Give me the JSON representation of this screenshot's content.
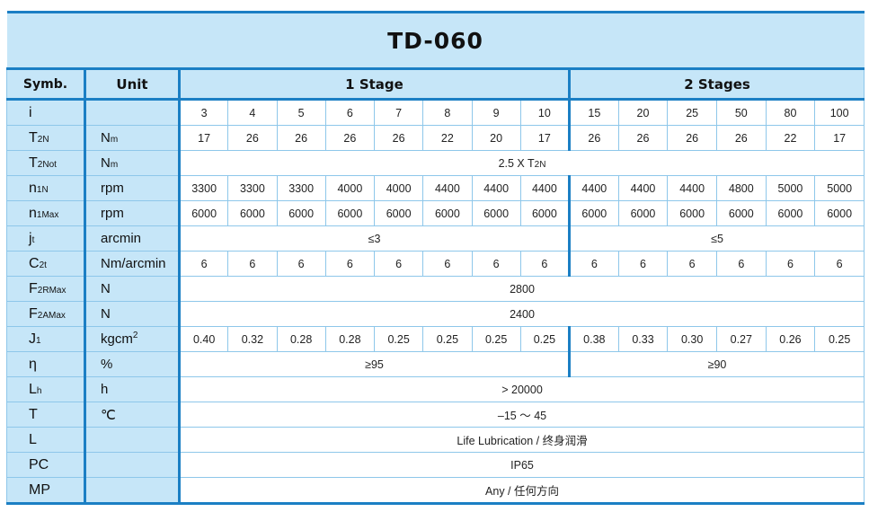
{
  "title": "TD-060",
  "header": {
    "symb": "Symb.",
    "unit": "Unit",
    "stage1": "1 Stage",
    "stage2": "2 Stages"
  },
  "colors": {
    "header_bg": "#c6e6f8",
    "border": "#1b7fc4",
    "grid": "#8ec7ea"
  },
  "rows": [
    {
      "sym": "i",
      "sym_sub": "",
      "unit": "",
      "unit_sub": "",
      "unit_sup": "",
      "values": [
        "3",
        "4",
        "5",
        "6",
        "7",
        "8",
        "9",
        "10",
        "15",
        "20",
        "25",
        "50",
        "80",
        "100"
      ]
    },
    {
      "sym": "T",
      "sym_sub": "2N",
      "unit": "N",
      "unit_sub": "m",
      "unit_sup": "",
      "values": [
        "17",
        "26",
        "26",
        "26",
        "26",
        "22",
        "20",
        "17",
        "26",
        "26",
        "26",
        "26",
        "22",
        "17"
      ]
    },
    {
      "sym": "T",
      "sym_sub": "2Not",
      "unit": "N",
      "unit_sub": "m",
      "unit_sup": "",
      "all": "2.5 X T",
      "all_sub": "2N"
    },
    {
      "sym": "n",
      "sym_sub": "1N",
      "unit": "rpm",
      "unit_sub": "",
      "unit_sup": "",
      "values": [
        "3300",
        "3300",
        "3300",
        "4000",
        "4000",
        "4400",
        "4400",
        "4400",
        "4400",
        "4400",
        "4400",
        "4800",
        "5000",
        "5000"
      ]
    },
    {
      "sym": "n",
      "sym_sub": "1Max",
      "unit": "rpm",
      "unit_sub": "",
      "unit_sup": "",
      "values": [
        "6000",
        "6000",
        "6000",
        "6000",
        "6000",
        "6000",
        "6000",
        "6000",
        "6000",
        "6000",
        "6000",
        "6000",
        "6000",
        "6000"
      ]
    },
    {
      "sym": "j",
      "sym_sub": "t",
      "unit": "arcmin",
      "unit_sub": "",
      "unit_sup": "",
      "s1": "≤3",
      "s2": "≤5"
    },
    {
      "sym": "C",
      "sym_sub": "2t",
      "unit": "Nm/arcmin",
      "unit_sub": "",
      "unit_sup": "",
      "values": [
        "6",
        "6",
        "6",
        "6",
        "6",
        "6",
        "6",
        "6",
        "6",
        "6",
        "6",
        "6",
        "6",
        "6"
      ]
    },
    {
      "sym": "F",
      "sym_sub": "2RMax",
      "unit": "N",
      "unit_sub": "",
      "unit_sup": "",
      "all": "2800"
    },
    {
      "sym": "F",
      "sym_sub": "2AMax",
      "unit": "N",
      "unit_sub": "",
      "unit_sup": "",
      "all": "2400"
    },
    {
      "sym": "J",
      "sym_sub": "1",
      "unit": "kgcm",
      "unit_sub": "",
      "unit_sup": "2",
      "values": [
        "0.40",
        "0.32",
        "0.28",
        "0.28",
        "0.25",
        "0.25",
        "0.25",
        "0.25",
        "0.38",
        "0.33",
        "0.30",
        "0.27",
        "0.26",
        "0.25"
      ]
    },
    {
      "sym": "η",
      "sym_sub": "",
      "unit": "%",
      "unit_sub": "",
      "unit_sup": "",
      "s1": "≥95",
      "s2": "≥90"
    },
    {
      "sym": "L",
      "sym_sub": "h",
      "unit": "h",
      "unit_sub": "",
      "unit_sup": "",
      "all": "> 20000"
    },
    {
      "sym": "T",
      "sym_sub": "",
      "unit": "℃",
      "unit_sub": "",
      "unit_sup": "",
      "all": "–15 ～ 45"
    },
    {
      "sym": "L",
      "sym_sub": "",
      "unit": "",
      "unit_sub": "",
      "unit_sup": "",
      "all": "Life Lubrication / 终身润滑"
    },
    {
      "sym": "PC",
      "sym_sub": "",
      "unit": "",
      "unit_sub": "",
      "unit_sup": "",
      "all": "IP65"
    },
    {
      "sym": "MP",
      "sym_sub": "",
      "unit": "",
      "unit_sub": "",
      "unit_sup": "",
      "all": "Any / 任何方向"
    }
  ]
}
